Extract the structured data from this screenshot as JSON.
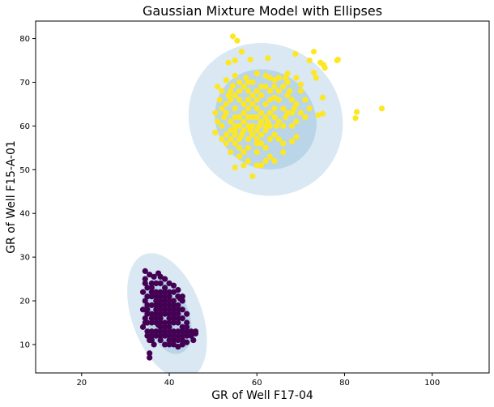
{
  "chart_data": {
    "type": "scatter",
    "title": "Gaussian Mixture Model with Ellipses",
    "xlabel": "GR of Well F17-04",
    "ylabel": "GR of Well F15-A-01",
    "xlim": [
      9.5,
      113
    ],
    "ylim": [
      3.5,
      84
    ],
    "xticks": [
      "20",
      "40",
      "60",
      "80",
      "100"
    ],
    "yticks": [
      "10",
      "20",
      "30",
      "40",
      "50",
      "60",
      "70",
      "80"
    ],
    "grid": false,
    "colors": {
      "cluster_upper": "#fde725",
      "cluster_lower": "#440154",
      "ellipse": "#1f77b4"
    },
    "ellipses": [
      {
        "cluster": "upper",
        "cx": 62,
        "cy": 61.5,
        "rx": 17,
        "ry": 18,
        "angle": 50,
        "level": "outer"
      },
      {
        "cluster": "upper",
        "cx": 62,
        "cy": 61.5,
        "rx": 11,
        "ry": 12,
        "angle": 50,
        "level": "inner"
      },
      {
        "cluster": "lower",
        "cx": 39.5,
        "cy": 16.5,
        "rx": 15,
        "ry": 8,
        "angle": -70,
        "level": "outer"
      },
      {
        "cluster": "lower",
        "cx": 39.5,
        "cy": 16.5,
        "rx": 9,
        "ry": 5,
        "angle": -70,
        "level": "inner"
      }
    ],
    "series": [
      {
        "cluster": "upper",
        "color": "#fde725",
        "points": [
          [
            54.5,
            80.5
          ],
          [
            55.5,
            79.5
          ],
          [
            56.5,
            77
          ],
          [
            58.5,
            75.2
          ],
          [
            53.5,
            74.5
          ],
          [
            55,
            75
          ],
          [
            62.5,
            75.5
          ],
          [
            68.8,
            76.5
          ],
          [
            72,
            75
          ],
          [
            73,
            77
          ],
          [
            74.5,
            74.5
          ],
          [
            75.2,
            74
          ],
          [
            75.5,
            73.3
          ],
          [
            78.5,
            75.2
          ],
          [
            78.3,
            75
          ],
          [
            73,
            72.2
          ],
          [
            73.5,
            71
          ],
          [
            67,
            72
          ],
          [
            55,
            71.5
          ],
          [
            70,
            69.5
          ],
          [
            75,
            66.5
          ],
          [
            74,
            62.5
          ],
          [
            75,
            62.8
          ],
          [
            82.5,
            61.8
          ],
          [
            82.8,
            63.2
          ],
          [
            88.5,
            64
          ],
          [
            69,
            57.5
          ],
          [
            68,
            56.5
          ],
          [
            59,
            48.5
          ],
          [
            55,
            50.5
          ],
          [
            57,
            51
          ],
          [
            61,
            51
          ],
          [
            63,
            53
          ],
          [
            51,
            69
          ],
          [
            53,
            70.5
          ],
          [
            54.5,
            69.2
          ],
          [
            57.5,
            71
          ],
          [
            60,
            72
          ],
          [
            63,
            71
          ],
          [
            66,
            69
          ],
          [
            64,
            66.5
          ],
          [
            61,
            63
          ],
          [
            58,
            60
          ],
          [
            56,
            57
          ],
          [
            62,
            55
          ],
          [
            57,
            54
          ],
          [
            59,
            65
          ],
          [
            63,
            60
          ],
          [
            60,
            56
          ],
          [
            52,
            64
          ],
          [
            50.5,
            58.5
          ],
          [
            54,
            61
          ],
          [
            53.5,
            67
          ],
          [
            55,
            64
          ],
          [
            56,
            62
          ],
          [
            58,
            66
          ],
          [
            60,
            68
          ],
          [
            62,
            65
          ],
          [
            64,
            62
          ],
          [
            66,
            60
          ],
          [
            65,
            57
          ],
          [
            61,
            58
          ],
          [
            59,
            60
          ],
          [
            57,
            63
          ],
          [
            55,
            58
          ],
          [
            53,
            56
          ],
          [
            52,
            60
          ],
          [
            54,
            66
          ],
          [
            56,
            68
          ],
          [
            58,
            68
          ],
          [
            60,
            64
          ],
          [
            62,
            62
          ],
          [
            64,
            58
          ],
          [
            66,
            56
          ],
          [
            63,
            68
          ],
          [
            61,
            69
          ],
          [
            59,
            70
          ],
          [
            57,
            69
          ],
          [
            55,
            67
          ],
          [
            53,
            63
          ],
          [
            58,
            57
          ],
          [
            60,
            54
          ],
          [
            62,
            52
          ],
          [
            64,
            52
          ],
          [
            66,
            54
          ],
          [
            68,
            60
          ],
          [
            67,
            63
          ],
          [
            68,
            66
          ],
          [
            70,
            68
          ],
          [
            71,
            66
          ],
          [
            72,
            64
          ],
          [
            70,
            63
          ],
          [
            69,
            61
          ],
          [
            71,
            62
          ],
          [
            65,
            71
          ],
          [
            67,
            70
          ],
          [
            69,
            71
          ],
          [
            64,
            69
          ],
          [
            60,
            59
          ],
          [
            61,
            61
          ],
          [
            59,
            62
          ],
          [
            57,
            61
          ],
          [
            55,
            59
          ],
          [
            54,
            57
          ],
          [
            56,
            55
          ],
          [
            58,
            55
          ],
          [
            60,
            57
          ],
          [
            62,
            59
          ],
          [
            52.5,
            62
          ],
          [
            51.5,
            66
          ],
          [
            52,
            68
          ],
          [
            54,
            68
          ],
          [
            56,
            66
          ],
          [
            58,
            64
          ],
          [
            60,
            62
          ],
          [
            62,
            60
          ],
          [
            64,
            64
          ],
          [
            65,
            66
          ],
          [
            66,
            64
          ],
          [
            63,
            63
          ],
          [
            60,
            66
          ],
          [
            58,
            62
          ],
          [
            56,
            60
          ],
          [
            54,
            59
          ],
          [
            53,
            58
          ],
          [
            55,
            62
          ],
          [
            57,
            65
          ],
          [
            59,
            67
          ],
          [
            61,
            67
          ],
          [
            63,
            66
          ],
          [
            62,
            69
          ],
          [
            65,
            68
          ],
          [
            67,
            67
          ],
          [
            69,
            65
          ],
          [
            68,
            63
          ],
          [
            65,
            61
          ],
          [
            63,
            57
          ],
          [
            61,
            56
          ],
          [
            59,
            58
          ],
          [
            57,
            59
          ],
          [
            55,
            56
          ],
          [
            58,
            52
          ],
          [
            60,
            51
          ],
          [
            56,
            53
          ],
          [
            54,
            54
          ],
          [
            52,
            57
          ],
          [
            51,
            61
          ],
          [
            50.5,
            63
          ],
          [
            53,
            65
          ],
          [
            55,
            60
          ],
          [
            56.5,
            58
          ],
          [
            58.5,
            59
          ],
          [
            60.5,
            60
          ],
          [
            62.5,
            61
          ],
          [
            64.5,
            60
          ],
          [
            66.5,
            62
          ],
          [
            68.5,
            64
          ],
          [
            67.5,
            68
          ],
          [
            66.5,
            71
          ],
          [
            64,
            70.5
          ],
          [
            62,
            71.5
          ],
          [
            58,
            70
          ],
          [
            56,
            70
          ]
        ]
      },
      {
        "cluster": "lower",
        "color": "#440154",
        "points": [
          [
            34.5,
            26.8
          ],
          [
            35.5,
            26
          ],
          [
            36.5,
            25.5
          ],
          [
            37.5,
            26.3
          ],
          [
            38,
            25.5
          ],
          [
            39,
            25
          ],
          [
            40,
            24
          ],
          [
            41,
            23.5
          ],
          [
            42,
            22.5
          ],
          [
            43,
            21
          ],
          [
            42.5,
            20.5
          ],
          [
            34.5,
            24
          ],
          [
            34,
            22
          ],
          [
            34.5,
            20
          ],
          [
            34,
            18
          ],
          [
            34.5,
            16
          ],
          [
            34,
            14
          ],
          [
            35,
            12
          ],
          [
            35.5,
            11
          ],
          [
            36.5,
            10
          ],
          [
            35.5,
            8
          ],
          [
            35.5,
            7
          ],
          [
            37.5,
            14.5
          ],
          [
            37,
            16
          ],
          [
            38,
            18
          ],
          [
            39,
            20
          ],
          [
            40,
            22
          ],
          [
            41,
            20
          ],
          [
            42,
            18
          ],
          [
            43,
            16
          ],
          [
            44,
            14
          ],
          [
            45,
            13
          ],
          [
            46,
            12.5
          ],
          [
            45.5,
            11
          ],
          [
            44,
            10.5
          ],
          [
            43,
            10
          ],
          [
            42,
            9.5
          ],
          [
            41,
            10
          ],
          [
            40,
            11
          ],
          [
            39,
            12
          ],
          [
            38,
            13
          ],
          [
            36,
            15
          ],
          [
            35,
            17
          ],
          [
            36,
            19
          ],
          [
            37,
            21
          ],
          [
            38,
            22
          ],
          [
            39,
            23
          ],
          [
            36,
            23
          ],
          [
            35,
            21
          ],
          [
            37,
            19
          ],
          [
            38,
            17
          ],
          [
            39,
            15
          ],
          [
            40,
            14
          ],
          [
            41,
            13
          ],
          [
            42,
            12
          ],
          [
            43,
            12
          ],
          [
            44,
            12
          ],
          [
            41,
            16
          ],
          [
            40,
            18
          ],
          [
            39,
            19
          ],
          [
            38,
            20
          ],
          [
            37,
            22
          ],
          [
            36,
            21
          ],
          [
            35,
            19
          ],
          [
            34.5,
            18
          ],
          [
            36,
            17
          ],
          [
            37,
            15
          ],
          [
            38,
            14
          ],
          [
            40,
            16
          ],
          [
            41,
            17
          ],
          [
            42,
            15
          ],
          [
            43,
            14
          ],
          [
            40,
            13
          ],
          [
            39,
            14
          ],
          [
            38,
            16
          ],
          [
            37,
            18
          ],
          [
            36,
            13
          ],
          [
            35,
            15
          ],
          [
            37,
            12
          ],
          [
            38,
            11
          ],
          [
            39,
            10
          ],
          [
            40,
            10
          ],
          [
            41,
            11
          ],
          [
            42,
            11
          ],
          [
            43,
            13
          ],
          [
            44,
            15
          ],
          [
            44,
            17
          ],
          [
            43,
            18
          ],
          [
            42,
            19
          ],
          [
            41,
            18
          ],
          [
            40,
            19
          ],
          [
            39,
            21
          ],
          [
            38,
            19
          ],
          [
            37,
            20
          ],
          [
            36,
            22
          ],
          [
            35,
            23
          ],
          [
            34.5,
            25
          ],
          [
            36,
            24
          ],
          [
            37,
            24
          ],
          [
            38,
            24
          ],
          [
            39,
            22
          ],
          [
            40,
            21
          ],
          [
            41,
            22
          ],
          [
            42,
            21
          ],
          [
            43,
            20
          ],
          [
            42,
            17
          ],
          [
            41,
            15
          ],
          [
            40,
            15
          ],
          [
            39,
            17
          ],
          [
            38,
            15
          ],
          [
            37,
            13
          ],
          [
            36,
            11
          ],
          [
            35,
            13
          ],
          [
            34.5,
            15
          ],
          [
            36,
            12
          ],
          [
            38,
            12
          ],
          [
            40,
            12
          ],
          [
            42,
            13
          ],
          [
            44,
            13
          ],
          [
            46,
            13
          ],
          [
            45,
            12
          ],
          [
            43,
            11
          ],
          [
            41,
            12
          ],
          [
            39,
            13
          ],
          [
            37,
            17
          ],
          [
            36,
            16
          ],
          [
            35,
            18
          ],
          [
            38,
            21
          ],
          [
            40,
            20
          ],
          [
            41,
            19
          ],
          [
            39,
            18
          ],
          [
            37,
            16
          ],
          [
            40,
            17
          ],
          [
            42,
            16
          ]
        ]
      }
    ]
  }
}
